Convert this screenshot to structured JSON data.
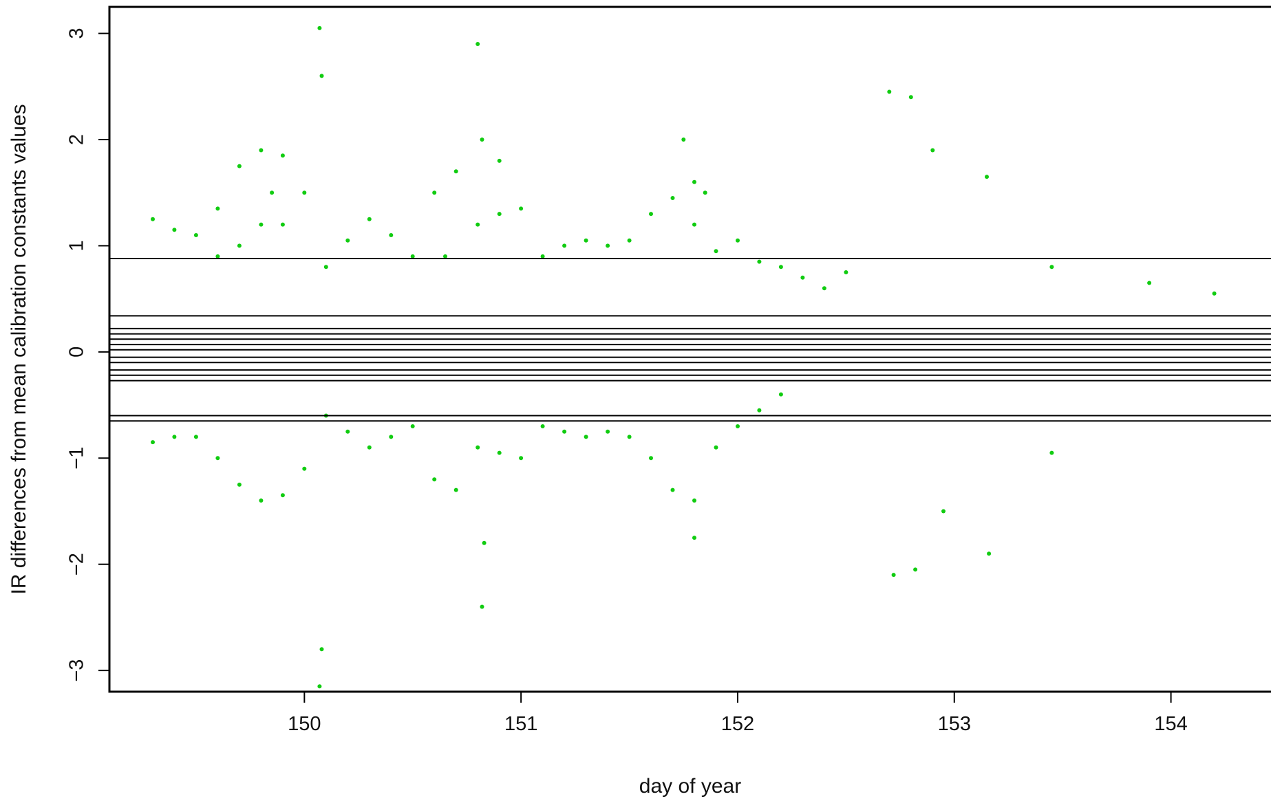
{
  "chart_data": {
    "type": "scatter",
    "xlabel": "day of year",
    "ylabel": "IR differences from mean calibration constants values",
    "xlim": [
      149.1,
      154.5
    ],
    "ylim": [
      -3.2,
      3.25
    ],
    "x_ticks": [
      150,
      151,
      152,
      153,
      154
    ],
    "x_tick_labels": [
      "150",
      "151",
      "152",
      "153",
      "154"
    ],
    "y_ticks": [
      -3,
      -2,
      -1,
      0,
      1,
      2,
      3
    ],
    "y_tick_labels": [
      "−3",
      "−2",
      "−1",
      "0",
      "1",
      "2",
      "3"
    ],
    "grid": false,
    "legend": "none",
    "point_color": "#11cc11",
    "line_color": "#000000",
    "x_range_points": [
      149.3,
      154.3
    ],
    "reference_lines_y": [
      0.88,
      0.34,
      0.22,
      0.17,
      0.12,
      0.07,
      0.02,
      -0.05,
      -0.1,
      -0.17,
      -0.22,
      -0.27,
      -0.6,
      -0.65
    ],
    "series": [
      {
        "points": [
          [
            149.3,
            1.25
          ],
          [
            149.4,
            1.15
          ],
          [
            149.5,
            1.1
          ],
          [
            149.6,
            1.35
          ],
          [
            149.7,
            1.75
          ],
          [
            149.8,
            1.9
          ],
          [
            149.9,
            1.85
          ],
          [
            150.0,
            1.5
          ],
          [
            150.1,
            0.8
          ],
          [
            150.2,
            1.05
          ],
          [
            150.3,
            1.25
          ],
          [
            150.4,
            1.1
          ],
          [
            150.5,
            0.9
          ],
          [
            150.6,
            1.5
          ],
          [
            150.7,
            1.7
          ],
          [
            150.8,
            1.2
          ],
          [
            150.9,
            1.3
          ],
          [
            151.0,
            1.35
          ],
          [
            151.1,
            0.9
          ],
          [
            151.2,
            1.0
          ],
          [
            151.3,
            1.05
          ],
          [
            151.4,
            1.0
          ],
          [
            151.5,
            1.05
          ],
          [
            151.6,
            1.3
          ],
          [
            151.7,
            1.45
          ],
          [
            151.8,
            1.2
          ],
          [
            151.9,
            0.95
          ],
          [
            152.0,
            1.05
          ],
          [
            152.1,
            0.85
          ],
          [
            152.2,
            0.8
          ],
          [
            152.3,
            0.7
          ],
          [
            152.4,
            0.6
          ],
          [
            152.5,
            0.75
          ]
        ]
      },
      {
        "points": [
          [
            149.3,
            -0.85
          ],
          [
            149.4,
            -0.8
          ],
          [
            149.5,
            -0.8
          ],
          [
            149.6,
            -1.0
          ],
          [
            149.7,
            -1.25
          ],
          [
            149.8,
            -1.4
          ],
          [
            149.9,
            -1.35
          ],
          [
            150.0,
            -1.1
          ],
          [
            150.1,
            -0.6
          ],
          [
            150.2,
            -0.75
          ],
          [
            150.3,
            -0.9
          ],
          [
            150.4,
            -0.8
          ],
          [
            150.5,
            -0.7
          ],
          [
            150.6,
            -1.2
          ],
          [
            150.7,
            -1.3
          ],
          [
            150.8,
            -0.9
          ],
          [
            150.9,
            -0.95
          ],
          [
            151.0,
            -1.0
          ],
          [
            151.1,
            -0.7
          ],
          [
            151.2,
            -0.75
          ],
          [
            151.3,
            -0.8
          ],
          [
            151.4,
            -0.75
          ],
          [
            151.5,
            -0.8
          ],
          [
            151.6,
            -1.0
          ],
          [
            151.7,
            -1.3
          ],
          [
            151.8,
            -1.4
          ],
          [
            151.9,
            -0.9
          ],
          [
            152.0,
            -0.7
          ],
          [
            152.1,
            -0.55
          ],
          [
            152.2,
            -0.4
          ]
        ]
      },
      {
        "points": [
          [
            149.6,
            0.9
          ],
          [
            149.7,
            1.0
          ],
          [
            149.8,
            1.2
          ],
          [
            149.85,
            1.5
          ],
          [
            149.9,
            1.2
          ],
          [
            150.07,
            3.05
          ],
          [
            150.07,
            -3.15
          ],
          [
            150.08,
            2.6
          ],
          [
            150.08,
            -2.8
          ],
          [
            150.65,
            0.9
          ],
          [
            150.8,
            2.9
          ],
          [
            150.82,
            2.0
          ],
          [
            150.82,
            -2.4
          ],
          [
            150.83,
            -1.8
          ],
          [
            150.9,
            1.8
          ],
          [
            151.75,
            2.0
          ],
          [
            151.8,
            1.6
          ],
          [
            151.8,
            -1.75
          ],
          [
            151.85,
            1.5
          ],
          [
            152.7,
            2.45
          ],
          [
            152.8,
            2.4
          ],
          [
            152.72,
            -2.1
          ],
          [
            152.82,
            -2.05
          ],
          [
            152.9,
            1.9
          ],
          [
            152.95,
            -1.5
          ],
          [
            153.15,
            1.65
          ],
          [
            153.16,
            -1.9
          ],
          [
            153.45,
            0.8
          ],
          [
            153.45,
            -0.95
          ],
          [
            153.9,
            0.65
          ],
          [
            154.2,
            0.55
          ]
        ]
      }
    ]
  }
}
